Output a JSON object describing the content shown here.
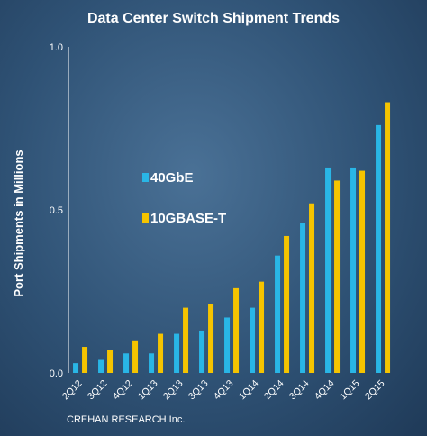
{
  "chart_data": {
    "type": "bar",
    "title": "Data Center Switch Shipment Trends",
    "ylabel": "Port Shipments in Millions",
    "xlabel": "",
    "ylim": [
      0,
      1.0
    ],
    "yticks": [
      "0.0",
      "0.5",
      "1.0"
    ],
    "categories": [
      "2Q12",
      "3Q12",
      "4Q12",
      "1Q13",
      "2Q13",
      "3Q13",
      "4Q13",
      "1Q14",
      "2Q14",
      "3Q14",
      "4Q14",
      "1Q15",
      "2Q15"
    ],
    "series": [
      {
        "name": "40GbE",
        "color": "#29b6e6",
        "values": [
          0.03,
          0.04,
          0.06,
          0.06,
          0.12,
          0.13,
          0.17,
          0.2,
          0.36,
          0.46,
          0.63,
          0.63,
          0.76
        ]
      },
      {
        "name": "10GBASE-T",
        "color": "#f5c400",
        "values": [
          0.08,
          0.07,
          0.1,
          0.12,
          0.2,
          0.21,
          0.26,
          0.28,
          0.42,
          0.52,
          0.59,
          0.62,
          0.83
        ]
      }
    ],
    "legend_position": "middle-left",
    "grid": false
  },
  "source": "CREHAN RESEARCH Inc."
}
